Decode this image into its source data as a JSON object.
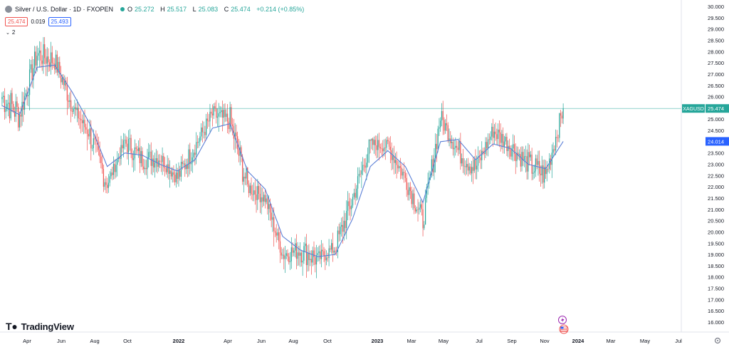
{
  "header": {
    "symbol_title": "Silver / U.S. Dollar · 1D · FXOPEN",
    "ohlc": [
      {
        "label": "O",
        "value": "25.272"
      },
      {
        "label": "H",
        "value": "25.517"
      },
      {
        "label": "L",
        "value": "25.083"
      },
      {
        "label": "C",
        "value": "25.474"
      }
    ],
    "change": "+0.214 (+0.85%)",
    "bid": "25.474",
    "spread": "0.019",
    "ask": "25.493",
    "indicator_count": "2"
  },
  "price_axis": {
    "ticks": [
      "30.000",
      "29.500",
      "29.000",
      "28.500",
      "28.000",
      "27.500",
      "27.000",
      "26.500",
      "26.000",
      "25.500",
      "25.000",
      "24.500",
      "24.000",
      "23.500",
      "23.000",
      "22.500",
      "22.000",
      "21.500",
      "21.000",
      "20.500",
      "20.000",
      "19.500",
      "19.000",
      "18.500",
      "18.000",
      "17.500",
      "17.000",
      "16.500",
      "16.000"
    ],
    "last_price_label": "XAGUSD",
    "last_price": "25.474",
    "ma_value": "24.014"
  },
  "time_axis": {
    "labels": [
      "Apr",
      "Jun",
      "Aug",
      "Oct",
      "2022",
      "Apr",
      "Jun",
      "Aug",
      "Oct",
      "2023",
      "Mar",
      "May",
      "Jul",
      "Sep",
      "Nov",
      "2024",
      "Mar",
      "May",
      "Jul"
    ]
  },
  "watermark": {
    "text": "TradingView"
  },
  "colors": {
    "up": "#26a69a",
    "down": "#ef5350",
    "ma": "#5b7fd6",
    "last_line": "#26a69a"
  },
  "icons": {
    "settings": "gear-icon",
    "flash": "lightning-icon",
    "event": "flag-icon"
  },
  "chart_data": {
    "type": "candlestick",
    "title": "Silver / U.S. Dollar · 1D · FXOPEN",
    "ylim": [
      16.0,
      30.0
    ],
    "grid": false,
    "x": [
      "2021-03",
      "2021-04",
      "2021-05",
      "2021-06",
      "2021-07",
      "2021-08",
      "2021-09",
      "2021-10",
      "2021-11",
      "2021-12",
      "2022-01",
      "2022-02",
      "2022-03",
      "2022-04",
      "2022-05",
      "2022-06",
      "2022-07",
      "2022-08",
      "2022-09",
      "2022-10",
      "2022-11",
      "2022-12",
      "2023-01",
      "2023-02",
      "2023-03",
      "2023-04",
      "2023-05",
      "2023-06",
      "2023-07",
      "2023-08",
      "2023-09",
      "2023-10",
      "2023-11"
    ],
    "close": [
      26.0,
      25.2,
      27.9,
      27.6,
      25.6,
      24.3,
      22.1,
      24.0,
      23.2,
      23.3,
      22.4,
      23.8,
      25.2,
      24.9,
      22.0,
      21.5,
      19.0,
      19.2,
      18.8,
      19.3,
      21.5,
      23.9,
      23.8,
      22.4,
      20.5,
      25.1,
      23.6,
      22.8,
      24.5,
      23.8,
      23.0,
      22.5,
      25.47
    ],
    "high": [
      28.2,
      26.8,
      28.7,
      28.4,
      26.5,
      25.5,
      23.3,
      25.0,
      25.4,
      23.5,
      24.8,
      24.5,
      26.9,
      25.8,
      22.6,
      22.4,
      20.6,
      20.8,
      19.5,
      21.0,
      22.5,
      24.0,
      24.6,
      24.0,
      22.8,
      26.1,
      26.1,
      24.2,
      25.2,
      24.9,
      24.0,
      23.6,
      25.6
    ],
    "low": [
      24.0,
      23.8,
      25.6,
      25.7,
      24.8,
      22.1,
      21.8,
      22.2,
      22.8,
      21.6,
      22.1,
      22.2,
      24.5,
      22.0,
      20.6,
      20.5,
      18.1,
      17.6,
      17.6,
      18.0,
      20.0,
      22.4,
      22.6,
      21.2,
      19.9,
      23.8,
      23.0,
      22.0,
      22.8,
      22.3,
      20.7,
      21.0,
      22.6
    ],
    "ma_close": [
      25.6,
      25.2,
      27.3,
      27.4,
      26.2,
      24.8,
      22.9,
      23.5,
      23.4,
      23.0,
      22.7,
      23.2,
      24.6,
      24.8,
      22.7,
      21.9,
      19.8,
      19.2,
      18.9,
      19.0,
      20.6,
      22.9,
      23.6,
      22.9,
      21.3,
      24.0,
      24.1,
      23.2,
      23.9,
      23.7,
      23.0,
      22.8,
      24.014
    ],
    "series": [
      {
        "name": "XAGUSD",
        "values_ref": "close"
      },
      {
        "name": "MA",
        "values_ref": "ma_close"
      }
    ]
  }
}
